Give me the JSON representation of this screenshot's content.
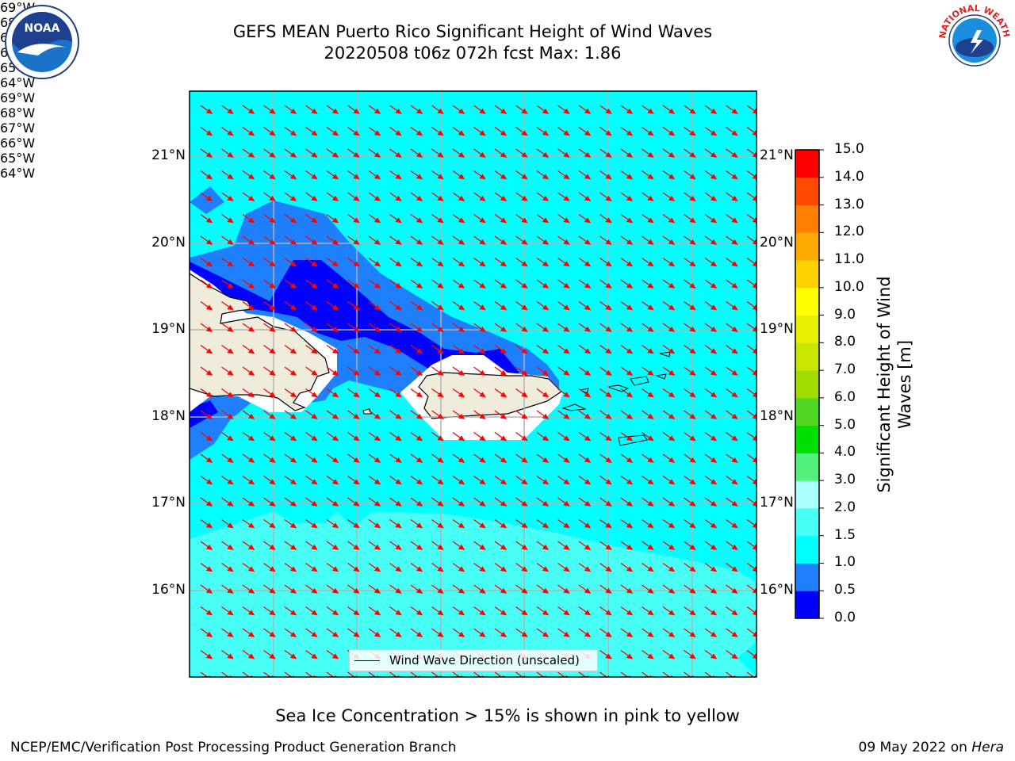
{
  "title_line1": "GEFS MEAN Puerto Rico Significant Height of Wind Waves",
  "title_line2": "20220508 t06z 072h fcst   Max: 1.86",
  "lon_labels": [
    "69°W",
    "68°W",
    "67°W",
    "66°W",
    "65°W",
    "64°W"
  ],
  "lat_labels": [
    "21°N",
    "20°N",
    "19°N",
    "18°N",
    "17°N",
    "16°N"
  ],
  "colorbar": {
    "label": "Significant Height of Wind Waves [m]",
    "ticks": [
      "0.0",
      "0.5",
      "1.0",
      "1.5",
      "2.0",
      "3.0",
      "4.0",
      "5.0",
      "6.0",
      "7.0",
      "8.0",
      "9.0",
      "10.0",
      "11.0",
      "12.0",
      "13.0",
      "14.0",
      "15.0"
    ],
    "colors": [
      "#0000ff",
      "#1e7fff",
      "#00ffff",
      "#48fff5",
      "#aaffff",
      "#50f07a",
      "#00e000",
      "#50d820",
      "#a0dc00",
      "#c8e600",
      "#e6f000",
      "#ffff00",
      "#ffd200",
      "#ffaa00",
      "#ff7f00",
      "#ff4a00",
      "#ff0000"
    ]
  },
  "legend_label": "Wind Wave Direction (unscaled)",
  "footer_note": "Sea Ice Concentration > 15% is shown in pink to yellow",
  "footer_left": "NCEP/EMC/Verification Post Processing Product Generation Branch",
  "footer_right_date": "09 May 2022 on ",
  "footer_right_host": "Hera",
  "logo_left_text": "NOAA",
  "logo_right_text": "NATIONAL WEATHER SERVICE",
  "colors": {
    "sea": "#00ffff",
    "land": "#efecdc",
    "arrow": "#ff0000",
    "grid": "#b4b4b4"
  }
}
